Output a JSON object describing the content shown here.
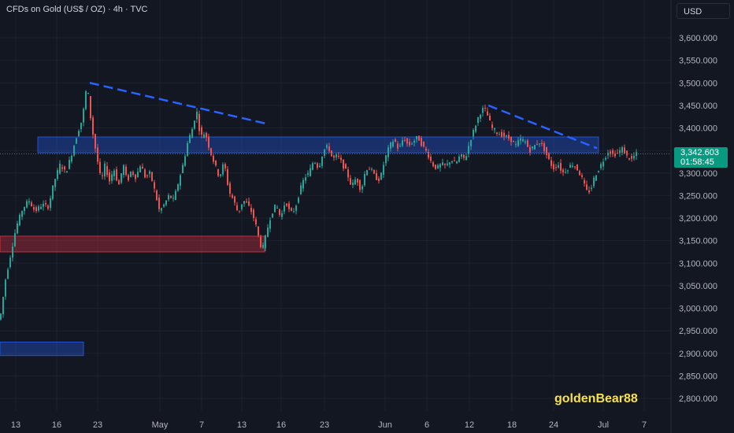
{
  "header": {
    "title": "CFDs on Gold (US$ / OZ) · 4h · TVC"
  },
  "scale": {
    "currency": "USD"
  },
  "last_price": {
    "value": "3,342.603",
    "countdown": "01:58:45"
  },
  "watermark": {
    "author": "goldenBear88"
  },
  "colors": {
    "background": "#131722",
    "up": "#26a69a",
    "down": "#ef5350",
    "zone_blue": "#2962ff",
    "zone_red": "#f23645",
    "trendline": "#2962ff",
    "badge": "#089981"
  },
  "chart_data": {
    "type": "candlestick",
    "title": "CFDs on Gold (US$ / OZ) · 4h · TVC",
    "ylim": [
      2760,
      3660
    ],
    "y_ticks": [
      "3,600.000",
      "3,550.000",
      "3,500.000",
      "3,450.000",
      "3,400.000",
      "3,350.000",
      "3,300.000",
      "3,250.000",
      "3,200.000",
      "3,150.000",
      "3,100.000",
      "3,050.000",
      "3,000.000",
      "2,950.000",
      "2,900.000",
      "2,850.000",
      "2,800.000"
    ],
    "x_ticks": [
      "13",
      "16",
      "23",
      "May",
      "7",
      "13",
      "16",
      "23",
      "Jun",
      "6",
      "12",
      "18",
      "24",
      "Jul",
      "7"
    ],
    "path_points": [
      [
        0,
        2975
      ],
      [
        3,
        2990
      ],
      [
        8,
        3060
      ],
      [
        15,
        3120
      ],
      [
        22,
        3180
      ],
      [
        30,
        3220
      ],
      [
        38,
        3240
      ],
      [
        46,
        3215
      ],
      [
        55,
        3230
      ],
      [
        63,
        3225
      ],
      [
        70,
        3280
      ],
      [
        78,
        3320
      ],
      [
        85,
        3300
      ],
      [
        92,
        3340
      ],
      [
        100,
        3390
      ],
      [
        106,
        3420
      ],
      [
        112,
        3500
      ],
      [
        116,
        3430
      ],
      [
        120,
        3380
      ],
      [
        125,
        3330
      ],
      [
        130,
        3280
      ],
      [
        135,
        3320
      ],
      [
        140,
        3280
      ],
      [
        146,
        3310
      ],
      [
        152,
        3270
      ],
      [
        158,
        3320
      ],
      [
        163,
        3280
      ],
      [
        168,
        3305
      ],
      [
        174,
        3290
      ],
      [
        180,
        3320
      ],
      [
        186,
        3290
      ],
      [
        192,
        3300
      ],
      [
        198,
        3260
      ],
      [
        204,
        3215
      ],
      [
        210,
        3230
      ],
      [
        216,
        3250
      ],
      [
        222,
        3240
      ],
      [
        228,
        3280
      ],
      [
        234,
        3320
      ],
      [
        240,
        3370
      ],
      [
        246,
        3400
      ],
      [
        251,
        3440
      ],
      [
        256,
        3380
      ],
      [
        262,
        3390
      ],
      [
        268,
        3350
      ],
      [
        274,
        3320
      ],
      [
        280,
        3290
      ],
      [
        286,
        3325
      ],
      [
        292,
        3260
      ],
      [
        298,
        3240
      ],
      [
        304,
        3210
      ],
      [
        310,
        3240
      ],
      [
        316,
        3230
      ],
      [
        322,
        3210
      ],
      [
        327,
        3180
      ],
      [
        332,
        3140
      ],
      [
        336,
        3135
      ],
      [
        340,
        3170
      ],
      [
        346,
        3210
      ],
      [
        352,
        3230
      ],
      [
        358,
        3200
      ],
      [
        364,
        3240
      ],
      [
        370,
        3210
      ],
      [
        376,
        3220
      ],
      [
        382,
        3260
      ],
      [
        388,
        3290
      ],
      [
        394,
        3300
      ],
      [
        400,
        3330
      ],
      [
        406,
        3310
      ],
      [
        412,
        3350
      ],
      [
        418,
        3360
      ],
      [
        424,
        3330
      ],
      [
        430,
        3340
      ],
      [
        436,
        3320
      ],
      [
        442,
        3300
      ],
      [
        448,
        3270
      ],
      [
        454,
        3290
      ],
      [
        460,
        3260
      ],
      [
        466,
        3310
      ],
      [
        472,
        3310
      ],
      [
        478,
        3290
      ],
      [
        484,
        3285
      ],
      [
        490,
        3330
      ],
      [
        496,
        3360
      ],
      [
        502,
        3375
      ],
      [
        508,
        3350
      ],
      [
        514,
        3380
      ],
      [
        520,
        3360
      ],
      [
        526,
        3370
      ],
      [
        532,
        3380
      ],
      [
        538,
        3360
      ],
      [
        544,
        3345
      ],
      [
        550,
        3320
      ],
      [
        556,
        3310
      ],
      [
        562,
        3320
      ],
      [
        568,
        3315
      ],
      [
        574,
        3330
      ],
      [
        580,
        3320
      ],
      [
        586,
        3340
      ],
      [
        592,
        3330
      ],
      [
        598,
        3370
      ],
      [
        604,
        3400
      ],
      [
        610,
        3430
      ],
      [
        616,
        3445
      ],
      [
        620,
        3430
      ],
      [
        626,
        3400
      ],
      [
        632,
        3390
      ],
      [
        638,
        3385
      ],
      [
        644,
        3380
      ],
      [
        650,
        3375
      ],
      [
        656,
        3360
      ],
      [
        662,
        3375
      ],
      [
        668,
        3370
      ],
      [
        674,
        3350
      ],
      [
        680,
        3360
      ],
      [
        686,
        3370
      ],
      [
        692,
        3355
      ],
      [
        698,
        3330
      ],
      [
        704,
        3310
      ],
      [
        710,
        3320
      ],
      [
        716,
        3300
      ],
      [
        722,
        3310
      ],
      [
        728,
        3320
      ],
      [
        734,
        3310
      ],
      [
        740,
        3290
      ],
      [
        746,
        3260
      ],
      [
        751,
        3260
      ],
      [
        756,
        3290
      ],
      [
        762,
        3310
      ],
      [
        768,
        3330
      ],
      [
        774,
        3350
      ],
      [
        780,
        3340
      ],
      [
        786,
        3345
      ],
      [
        792,
        3355
      ],
      [
        798,
        3335
      ],
      [
        804,
        3330
      ],
      [
        808,
        3342
      ]
    ],
    "zones": [
      {
        "type": "resistance",
        "x0": 48,
        "x1": 760,
        "y0": 3345,
        "y1": 3380,
        "color": "#2962ff"
      },
      {
        "type": "support",
        "x0": 0,
        "x1": 336,
        "y0": 3125,
        "y1": 3160,
        "color": "#f23645"
      },
      {
        "type": "support",
        "x0": 0,
        "x1": 106,
        "y0": 2895,
        "y1": 2925,
        "color": "#2962ff"
      }
    ],
    "trendlines": [
      {
        "from": [
          114,
          3500
        ],
        "to": [
          337,
          3410
        ]
      },
      {
        "from": [
          620,
          3450
        ],
        "to": [
          758,
          3355
        ]
      }
    ],
    "last_price": 3342.603,
    "grid": true
  }
}
